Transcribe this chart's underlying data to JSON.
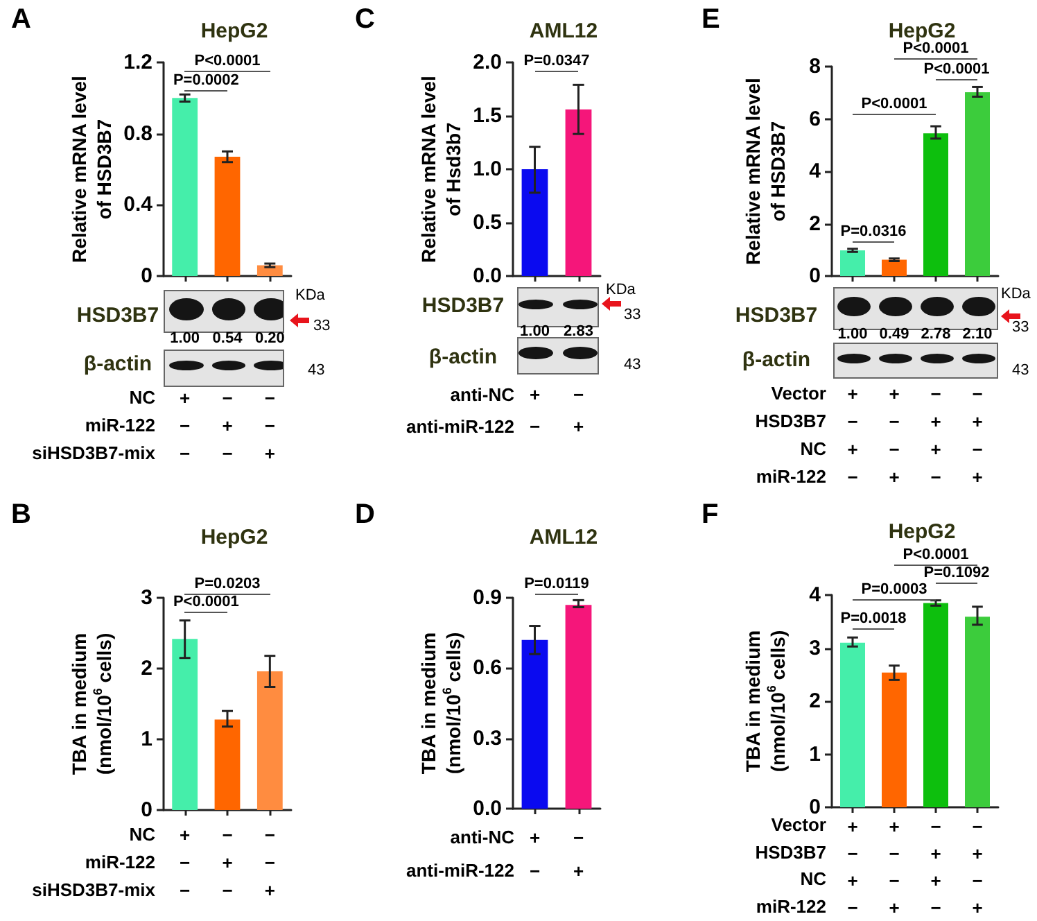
{
  "chart_data": [
    {
      "type": "bar",
      "title": "HepG2",
      "ylabel": "Relative mRNA level\nof HSD3B7",
      "categories": [
        "+\n−\n−",
        "−\n+\n−",
        "−\n−\n+"
      ],
      "values": [
        1.0,
        0.67,
        0.06
      ],
      "colors": [
        "#45eeaa",
        "#ff6600",
        "#ff8c40"
      ],
      "errors": [
        [
          0.98,
          1.02
        ],
        [
          0.64,
          0.7
        ],
        [
          0.05,
          0.07
        ]
      ],
      "ylim": [
        0,
        1.2
      ],
      "yticks": [
        0,
        0.4,
        0.8,
        1.2
      ],
      "annotations": [
        "A",
        "P<0.0001",
        "P=0.0002",
        "HSD3B7",
        "KDa",
        "33",
        "1.00",
        "0.54",
        "0.20",
        "β-actin",
        "43",
        "NC",
        "miR-122",
        "siHSD3B7-mix"
      ]
    },
    {
      "type": "bar",
      "title": "HepG2",
      "ylabel": "TBA in medium\n(nmol/10$^{6}$ cells)",
      "categories": [
        "+\n−\n−",
        "−\n+\n−",
        "−\n−\n+"
      ],
      "values": [
        2.42,
        1.28,
        1.96
      ],
      "colors": [
        "#45eeaa",
        "#ff6600",
        "#ff8c40"
      ],
      "errors": [
        [
          2.15,
          2.68
        ],
        [
          1.18,
          1.4
        ],
        [
          1.74,
          2.18
        ]
      ],
      "ylim": [
        0,
        3
      ],
      "yticks": [
        0,
        1,
        2,
        3
      ],
      "annotations": [
        "B",
        "P=0.0203",
        "P<0.0001",
        "NC",
        "miR-122",
        "siHSD3B7-mix"
      ]
    },
    {
      "type": "bar",
      "title": "AML12",
      "ylabel": "Relative mRNA level\nof Hsd3b7",
      "categories": [
        "+\n−",
        "−\n+"
      ],
      "values": [
        1.0,
        1.56
      ],
      "colors": [
        "#0a0af0",
        "#f5167a"
      ],
      "errors": [
        [
          0.78,
          1.21
        ],
        [
          1.33,
          1.79
        ]
      ],
      "ylim": [
        0,
        2
      ],
      "yticks": [
        {
          "value": 0,
          "label": "0.0"
        },
        {
          "value": 0.5,
          "label": "0.5"
        },
        {
          "value": 1,
          "label": "1.0"
        },
        {
          "value": 1.5,
          "label": "1.5"
        },
        {
          "value": 2,
          "label": "2.0"
        }
      ],
      "annotations": [
        "C",
        "P=0.0347",
        "HSD3B7",
        "KDa",
        "33",
        "1.00",
        "2.83",
        "β-actin",
        "43",
        "anti-NC",
        "anti-miR-122"
      ]
    },
    {
      "type": "bar",
      "title": "AML12",
      "ylabel": "TBA in medium\n(nmol/10$^{6}$ cells)",
      "categories": [
        "+\n−",
        "−\n+"
      ],
      "values": [
        0.72,
        0.87
      ],
      "colors": [
        "#0a0af0",
        "#f5167a"
      ],
      "errors": [
        [
          0.66,
          0.78
        ],
        [
          0.86,
          0.89
        ]
      ],
      "ylim": [
        0,
        0.9
      ],
      "yticks": [
        {
          "value": 0,
          "label": "0.0"
        },
        {
          "value": 0.3,
          "label": "0.3"
        },
        {
          "value": 0.6,
          "label": "0.6"
        },
        {
          "value": 0.9,
          "label": "0.9"
        }
      ],
      "annotations": [
        "D",
        "P=0.0119",
        "anti-NC",
        "anti-miR-122"
      ]
    },
    {
      "type": "bar",
      "title": "HepG2",
      "ylabel": "Relative mRNA level\nof HSD3B7",
      "categories": [
        "+\n−\n+\n−",
        "+\n−\n−\n+",
        "−\n+\n+\n−",
        "−\n+\n−\n+"
      ],
      "values": [
        0.98,
        0.62,
        5.45,
        7.02
      ],
      "colors": [
        "#45eeaa",
        "#ff6600",
        "#0dbf0d",
        "#3ccc3c"
      ],
      "errors": [
        [
          0.92,
          1.04
        ],
        [
          0.57,
          0.67
        ],
        [
          5.25,
          5.72
        ],
        [
          6.85,
          7.22
        ]
      ],
      "ylim": [
        0,
        8
      ],
      "yticks": [
        0,
        2,
        4,
        6,
        8
      ],
      "annotations": [
        "E",
        "P<0.0001",
        "P<0.0001",
        "P<0.0001",
        "P=0.0316",
        "HSD3B7",
        "KDa",
        "33",
        "1.00",
        "0.49",
        "2.78",
        "2.10",
        "β-actin",
        "43",
        "Vector",
        "HSD3B7",
        "NC",
        "miR-122"
      ]
    },
    {
      "type": "bar",
      "title": "HepG2",
      "ylabel": "TBA in medium\n(nmol/10$^{6}$ cells)",
      "categories": [
        "+\n−\n+\n−",
        "+\n−\n−\n+",
        "−\n+\n+\n−",
        "−\n+\n−\n+"
      ],
      "values": [
        3.1,
        2.54,
        3.85,
        3.59
      ],
      "colors": [
        "#45eeaa",
        "#ff6600",
        "#0dbf0d",
        "#3ccc3c"
      ],
      "errors": [
        [
          3.03,
          3.2
        ],
        [
          2.4,
          2.67
        ],
        [
          3.8,
          3.9
        ],
        [
          3.44,
          3.78
        ]
      ],
      "ylim": [
        0,
        4
      ],
      "yticks": [
        0,
        1,
        2,
        3,
        4
      ],
      "annotations": [
        "F",
        "P<0.0001",
        "P=0.1092",
        "P=0.0003",
        "P=0.0018",
        "Vector",
        "HSD3B7",
        "NC",
        "miR-122"
      ]
    }
  ]
}
